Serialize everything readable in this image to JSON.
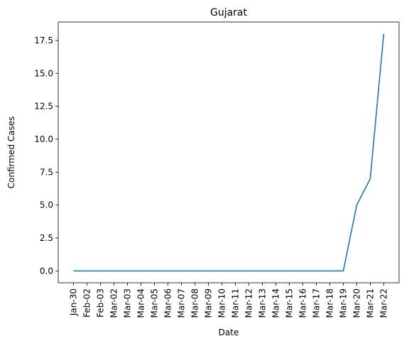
{
  "chart_data": {
    "type": "line",
    "title": "Gujarat",
    "xlabel": "Date",
    "ylabel": "Confirmed Cases",
    "categories": [
      "Jan-30",
      "Feb-02",
      "Feb-03",
      "Mar-02",
      "Mar-03",
      "Mar-04",
      "Mar-05",
      "Mar-06",
      "Mar-07",
      "Mar-08",
      "Mar-09",
      "Mar-10",
      "Mar-11",
      "Mar-12",
      "Mar-13",
      "Mar-14",
      "Mar-15",
      "Mar-16",
      "Mar-17",
      "Mar-18",
      "Mar-19",
      "Mar-20",
      "Mar-21",
      "Mar-22"
    ],
    "series": [
      {
        "values": [
          0,
          0,
          0,
          0,
          0,
          0,
          0,
          0,
          0,
          0,
          0,
          0,
          0,
          0,
          0,
          0,
          0,
          0,
          0,
          0,
          0,
          5,
          7,
          18
        ]
      }
    ],
    "ylim": [
      -0.9,
      18.9
    ],
    "yticks": [
      "0.0",
      "2.5",
      "5.0",
      "7.5",
      "10.0",
      "12.5",
      "15.0",
      "17.5"
    ],
    "ytick_values": [
      0,
      2.5,
      5,
      7.5,
      10,
      12.5,
      15,
      17.5
    ],
    "line_color": "#1f77b4",
    "grid": false,
    "legend": "none"
  }
}
